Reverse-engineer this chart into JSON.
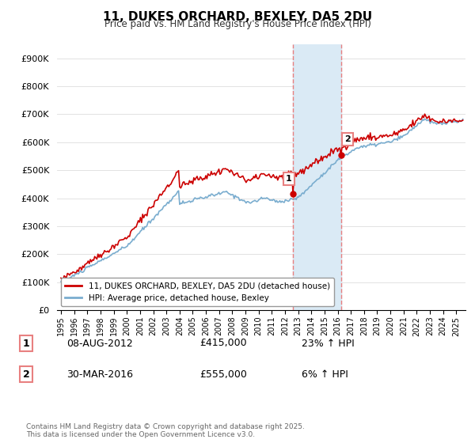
{
  "title": "11, DUKES ORCHARD, BEXLEY, DA5 2DU",
  "subtitle": "Price paid vs. HM Land Registry's House Price Index (HPI)",
  "legend_property": "11, DUKES ORCHARD, BEXLEY, DA5 2DU (detached house)",
  "legend_hpi": "HPI: Average price, detached house, Bexley",
  "sale1_date": "08-AUG-2012",
  "sale1_price": "£415,000",
  "sale1_hpi": "23% ↑ HPI",
  "sale1_year": 2012.6,
  "sale1_value": 415000,
  "sale2_date": "30-MAR-2016",
  "sale2_price": "£555,000",
  "sale2_hpi": "6% ↑ HPI",
  "sale2_year": 2016.25,
  "sale2_value": 555000,
  "property_color": "#cc0000",
  "hpi_color": "#7aadcf",
  "shaded_color": "#daeaf5",
  "vline_color": "#e88080",
  "footer": "Contains HM Land Registry data © Crown copyright and database right 2025.\nThis data is licensed under the Open Government Licence v3.0.",
  "ylim": [
    0,
    950000
  ],
  "yticks": [
    0,
    100000,
    200000,
    300000,
    400000,
    500000,
    600000,
    700000,
    800000,
    900000
  ],
  "ytick_labels": [
    "£0",
    "£100K",
    "£200K",
    "£300K",
    "£400K",
    "£500K",
    "£600K",
    "£700K",
    "£800K",
    "£900K"
  ],
  "xtick_years": [
    1995,
    1996,
    1997,
    1998,
    1999,
    2000,
    2001,
    2002,
    2003,
    2004,
    2005,
    2006,
    2007,
    2008,
    2009,
    2010,
    2011,
    2012,
    2013,
    2014,
    2015,
    2016,
    2017,
    2018,
    2019,
    2020,
    2021,
    2022,
    2023,
    2024,
    2025
  ]
}
